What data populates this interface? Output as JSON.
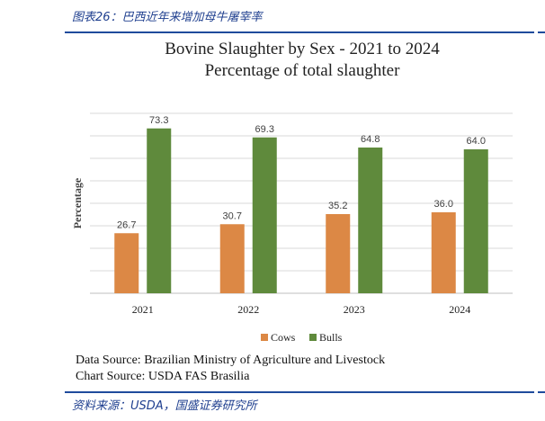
{
  "figure_label": "图表26：巴西近年来增加母牛屠宰率",
  "footer": "资料来源：USDA，国盛证券研究所",
  "data_source": "Data Source: Brazilian Ministry of Agriculture and Livestock",
  "chart_source": "Chart Source: USDA FAS Brasilia",
  "colors": {
    "cows": "#dc8845",
    "bulls": "#5f8a3c",
    "accent": "#1f4b9c"
  },
  "chart_data": {
    "type": "bar",
    "title": "Bovine Slaughter by Sex - 2021 to 2024",
    "subtitle": "Percentage of total slaughter",
    "xlabel": "",
    "ylabel": "Percentage",
    "categories": [
      "2021",
      "2022",
      "2023",
      "2024"
    ],
    "series": [
      {
        "name": "Cows",
        "values": [
          26.7,
          30.7,
          35.2,
          36.0
        ],
        "labels": [
          "26.7",
          "30.7",
          "35.2",
          "36.0"
        ]
      },
      {
        "name": "Bulls",
        "values": [
          73.3,
          69.3,
          64.8,
          64.0
        ],
        "labels": [
          "73.3",
          "69.3",
          "64.8",
          "64.0"
        ]
      }
    ],
    "ylim": [
      0,
      80
    ],
    "grid": true,
    "legend": "bottom-center"
  }
}
